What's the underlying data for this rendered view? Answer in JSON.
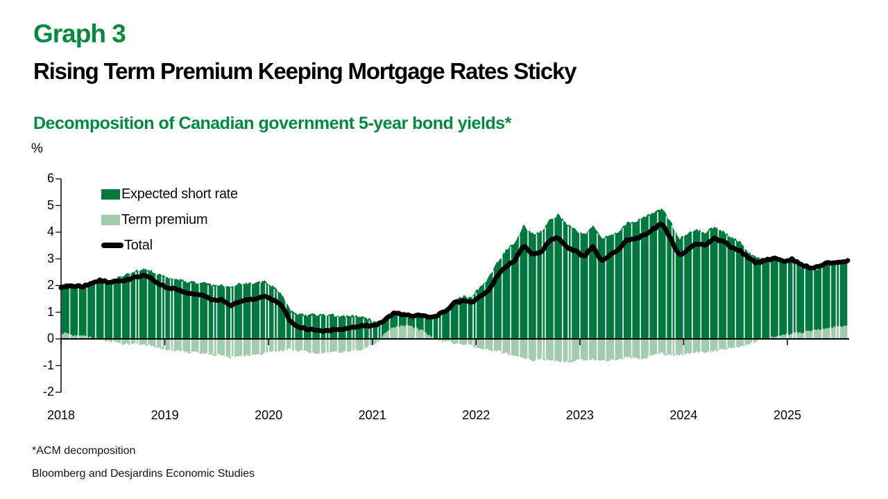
{
  "header": {
    "graph_label": "Graph 3",
    "title": "Rising Term Premium Keeping Mortgage Rates Sticky"
  },
  "subtitle": "Decomposition of Canadian government 5-year bond yields*",
  "unit_label": "%",
  "colors": {
    "brand_green": "#008A3E",
    "expected_short_rate": "#00793F",
    "term_premium": "#A2CCAD",
    "total_line": "#000000",
    "axis": "#000000",
    "background": "#FFFFFF"
  },
  "legend": {
    "items": [
      {
        "label": "Expected short rate",
        "marker": "swatch-dark-green"
      },
      {
        "label": "Term premium",
        "marker": "swatch-light-green"
      },
      {
        "label": "Total",
        "marker": "thick-black-line"
      }
    ]
  },
  "footnotes": {
    "note": "*ACM decomposition",
    "source": "Bloomberg and Desjardins Economic Studies"
  },
  "chart_data": {
    "type": "bar",
    "subtype": "stacked-daily-bars-with-line-overlay",
    "unit": "%",
    "frequency": "monthly",
    "title": "Decomposition of Canadian government 5-year bond yields*",
    "xlabel": "",
    "ylabel": "%",
    "ylim": [
      -2,
      6
    ],
    "grid": false,
    "legend_position": "inside-top-left",
    "x_ticks": [
      "2018",
      "2019",
      "2020",
      "2021",
      "2022",
      "2023",
      "2024",
      "2025"
    ],
    "y_ticks": [
      "6",
      "5",
      "4",
      "3",
      "2",
      "1",
      "0",
      "-1",
      "-2"
    ],
    "months": [
      "2018-01",
      "2018-02",
      "2018-03",
      "2018-04",
      "2018-05",
      "2018-06",
      "2018-07",
      "2018-08",
      "2018-09",
      "2018-10",
      "2018-11",
      "2018-12",
      "2019-01",
      "2019-02",
      "2019-03",
      "2019-04",
      "2019-05",
      "2019-06",
      "2019-07",
      "2019-08",
      "2019-09",
      "2019-10",
      "2019-11",
      "2019-12",
      "2020-01",
      "2020-02",
      "2020-03",
      "2020-04",
      "2020-05",
      "2020-06",
      "2020-07",
      "2020-08",
      "2020-09",
      "2020-10",
      "2020-11",
      "2020-12",
      "2021-01",
      "2021-02",
      "2021-03",
      "2021-04",
      "2021-05",
      "2021-06",
      "2021-07",
      "2021-08",
      "2021-09",
      "2021-10",
      "2021-11",
      "2021-12",
      "2022-01",
      "2022-02",
      "2022-03",
      "2022-04",
      "2022-05",
      "2022-06",
      "2022-07",
      "2022-08",
      "2022-09",
      "2022-10",
      "2022-11",
      "2022-12",
      "2023-01",
      "2023-02",
      "2023-03",
      "2023-04",
      "2023-05",
      "2023-06",
      "2023-07",
      "2023-08",
      "2023-09",
      "2023-10",
      "2023-11",
      "2023-12",
      "2024-01",
      "2024-02",
      "2024-03",
      "2024-04",
      "2024-05",
      "2024-06",
      "2024-07",
      "2024-08",
      "2024-09",
      "2024-10",
      "2024-11",
      "2024-12",
      "2025-01",
      "2025-02",
      "2025-03",
      "2025-04",
      "2025-05",
      "2025-06",
      "2025-07",
      "2025-08"
    ],
    "series": [
      {
        "name": "Expected short rate",
        "role": "stacked-bar",
        "color": "#00793F",
        "values": [
          1.8,
          1.9,
          1.9,
          2.05,
          2.2,
          2.2,
          2.3,
          2.4,
          2.55,
          2.6,
          2.55,
          2.4,
          2.3,
          2.25,
          2.15,
          2.1,
          2.1,
          2.0,
          2.05,
          1.95,
          2.05,
          2.1,
          2.1,
          2.15,
          1.95,
          1.7,
          1.05,
          0.9,
          0.9,
          0.92,
          0.9,
          0.9,
          0.86,
          0.85,
          0.85,
          0.75,
          0.6,
          0.5,
          0.5,
          0.4,
          0.43,
          0.55,
          0.65,
          0.9,
          1.1,
          1.45,
          1.6,
          1.6,
          1.95,
          2.3,
          2.9,
          3.35,
          3.65,
          4.25,
          3.95,
          4.0,
          4.45,
          4.65,
          4.3,
          4.1,
          3.9,
          4.25,
          3.75,
          3.9,
          4.05,
          4.35,
          4.4,
          4.6,
          4.7,
          4.9,
          4.4,
          3.75,
          3.95,
          4.1,
          4.0,
          4.2,
          4.05,
          3.8,
          3.65,
          3.25,
          3.0,
          3.0,
          2.95,
          2.75,
          2.75,
          2.5,
          2.3,
          2.3,
          2.4,
          2.4,
          2.4,
          2.45
        ]
      },
      {
        "name": "Term premium",
        "role": "stacked-bar",
        "color": "#A2CCAD",
        "values": [
          0.2,
          0.15,
          0.1,
          0.05,
          0.0,
          -0.1,
          -0.15,
          -0.2,
          -0.2,
          -0.2,
          -0.25,
          -0.35,
          -0.4,
          -0.45,
          -0.5,
          -0.5,
          -0.55,
          -0.6,
          -0.6,
          -0.7,
          -0.65,
          -0.6,
          -0.6,
          -0.55,
          -0.5,
          -0.45,
          -0.4,
          -0.45,
          -0.5,
          -0.55,
          -0.55,
          -0.5,
          -0.5,
          -0.45,
          -0.4,
          -0.3,
          -0.15,
          0.2,
          0.45,
          0.5,
          0.45,
          0.35,
          0.15,
          -0.05,
          -0.1,
          -0.15,
          -0.2,
          -0.25,
          -0.35,
          -0.4,
          -0.45,
          -0.55,
          -0.65,
          -0.7,
          -0.8,
          -0.75,
          -0.8,
          -0.85,
          -0.85,
          -0.8,
          -0.8,
          -0.75,
          -0.85,
          -0.8,
          -0.75,
          -0.7,
          -0.7,
          -0.75,
          -0.6,
          -0.55,
          -0.6,
          -0.6,
          -0.55,
          -0.5,
          -0.5,
          -0.45,
          -0.4,
          -0.35,
          -0.3,
          -0.2,
          -0.1,
          0.0,
          0.1,
          0.15,
          0.2,
          0.25,
          0.3,
          0.35,
          0.4,
          0.45,
          0.5,
          0.55
        ]
      },
      {
        "name": "Total",
        "role": "line",
        "color": "#000000",
        "values": [
          2.0,
          2.05,
          2.0,
          2.1,
          2.2,
          2.1,
          2.15,
          2.2,
          2.35,
          2.4,
          2.3,
          2.05,
          1.9,
          1.8,
          1.65,
          1.6,
          1.55,
          1.4,
          1.45,
          1.25,
          1.4,
          1.5,
          1.5,
          1.6,
          1.45,
          1.25,
          0.65,
          0.45,
          0.4,
          0.37,
          0.35,
          0.4,
          0.36,
          0.4,
          0.45,
          0.45,
          0.45,
          0.7,
          0.95,
          0.9,
          0.88,
          0.9,
          0.8,
          0.85,
          1.0,
          1.3,
          1.4,
          1.35,
          1.6,
          1.9,
          2.45,
          2.8,
          3.0,
          3.55,
          3.15,
          3.25,
          3.65,
          3.8,
          3.45,
          3.3,
          3.1,
          3.5,
          2.9,
          3.1,
          3.3,
          3.65,
          3.7,
          3.85,
          4.1,
          4.35,
          3.8,
          3.15,
          3.4,
          3.6,
          3.5,
          3.75,
          3.65,
          3.45,
          3.35,
          3.05,
          2.9,
          3.0,
          3.05,
          2.9,
          2.95,
          2.75,
          2.6,
          2.65,
          2.8,
          2.85,
          2.9,
          3.0
        ]
      }
    ]
  }
}
